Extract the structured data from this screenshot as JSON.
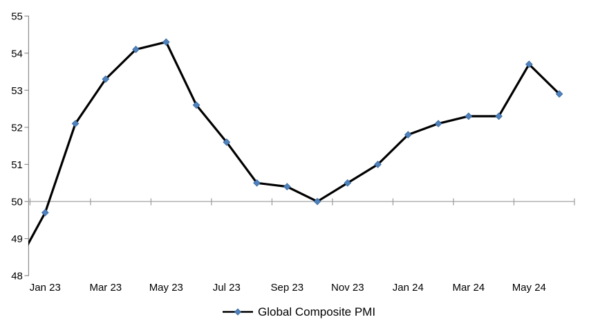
{
  "chart_data": {
    "type": "line",
    "title": "",
    "legend_position": "bottom",
    "x": [
      "Dec 22",
      "Jan 23",
      "Feb 23",
      "Mar 23",
      "Apr 23",
      "May 23",
      "Jun 23",
      "Jul 23",
      "Aug 23",
      "Sep 23",
      "Oct 23",
      "Nov 23",
      "Dec 23",
      "Jan 24",
      "Feb 24",
      "Mar 24",
      "Apr 24",
      "May 24",
      "Jun 24"
    ],
    "series": [
      {
        "name": "Global Composite PMI",
        "values": [
          48.2,
          49.7,
          52.1,
          53.3,
          54.1,
          54.3,
          52.6,
          51.6,
          50.5,
          50.4,
          50.0,
          50.5,
          51.0,
          51.8,
          52.1,
          52.3,
          52.3,
          53.7,
          52.9
        ],
        "marker": "diamond",
        "first_point_clipped_at_left_axis": true
      }
    ],
    "x_tick_labels": [
      "Jan 23",
      "Mar 23",
      "May 23",
      "Jul 23",
      "Sep 23",
      "Nov 23",
      "Jan 24",
      "Mar 24",
      "May 24"
    ],
    "y_ticks": [
      48,
      49,
      50,
      51,
      52,
      53,
      54,
      55
    ],
    "ylim": [
      48,
      55
    ],
    "xlabel": "",
    "ylabel": "",
    "grid": false,
    "x_axis_cross_value": 50,
    "colors": {
      "line": "#000000",
      "marker_fill": "#4f81bd",
      "marker_edge": "#3a6a9e",
      "axis": "#8c8c8c",
      "baseline": "#9a9a9a",
      "text": "#000000"
    }
  }
}
